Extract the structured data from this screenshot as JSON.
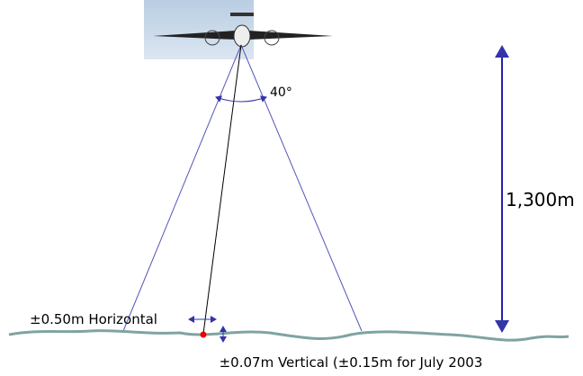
{
  "labels": {
    "angle": "40°",
    "altitude": "1,300m",
    "horizontal": "±0.50m Horizontal",
    "vertical": "±0.07m Vertical (±0.15m for July 2003"
  }
}
